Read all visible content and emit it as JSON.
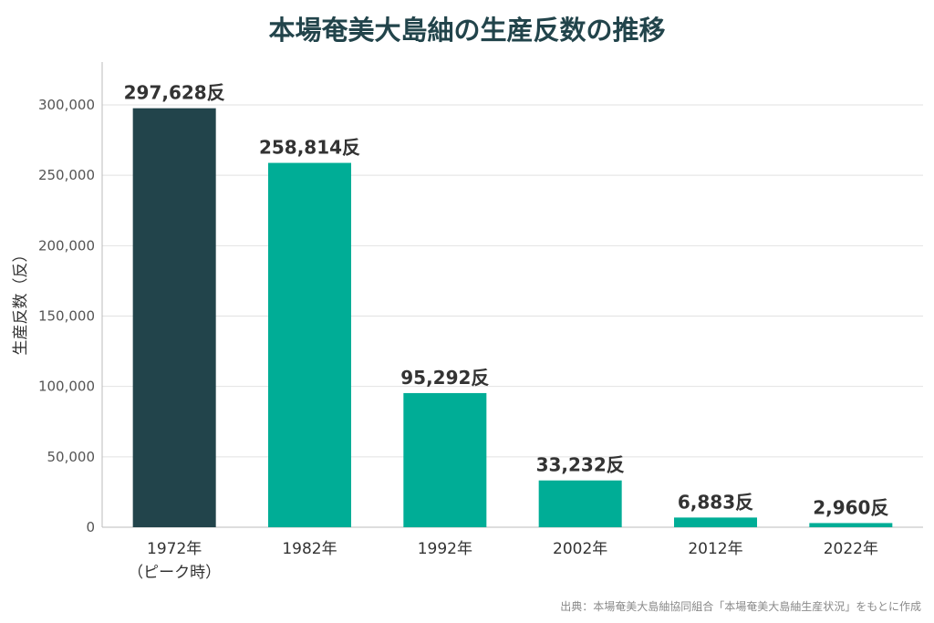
{
  "chart_data": {
    "type": "bar",
    "title": "本場奄美大島紬の生産反数の推移",
    "ylabel": "生産反数（反）",
    "xlabel": "",
    "categories": [
      "1972年",
      "1982年",
      "1992年",
      "2002年",
      "2012年",
      "2022年"
    ],
    "category_sublabels": [
      "（ピーク時）",
      "",
      "",
      "",
      "",
      ""
    ],
    "values": [
      297628,
      258814,
      95292,
      33232,
      6883,
      2960
    ],
    "data_labels": [
      "297,628反",
      "258,814反",
      "95,292反",
      "33,232反",
      "6,883反",
      "2,960反"
    ],
    "highlight_index": 0,
    "ylim": [
      0,
      300000
    ],
    "yticks": [
      0,
      50000,
      100000,
      150000,
      200000,
      250000,
      300000
    ],
    "ytick_labels": [
      "0",
      "50,000",
      "100,000",
      "150,000",
      "200,000",
      "250,000",
      "300,000"
    ],
    "grid": true,
    "colors": {
      "highlight": "#22444b",
      "bar": "#00ad96",
      "title": "#22444b"
    }
  },
  "source": "出典：本場奄美大島紬協同組合「本場奄美大島紬生産状況」をもとに作成"
}
